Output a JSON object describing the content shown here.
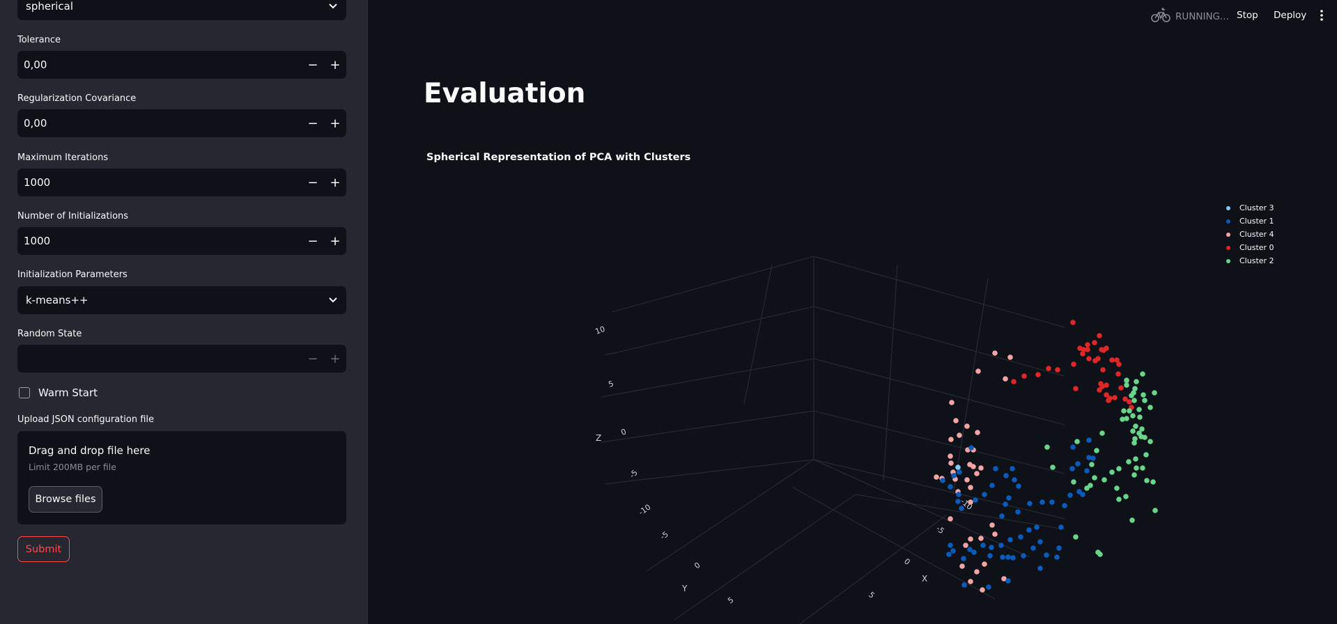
{
  "sidebar": {
    "covariance_value": "spherical",
    "tolerance": {
      "label": "Tolerance",
      "value": "0,00"
    },
    "reg_covar": {
      "label": "Regularization Covariance",
      "value": "0,00"
    },
    "max_iter": {
      "label": "Maximum Iterations",
      "value": "1000"
    },
    "n_init": {
      "label": "Number of Initializations",
      "value": "1000"
    },
    "init_params": {
      "label": "Initialization Parameters",
      "value": "k-means++"
    },
    "random_state": {
      "label": "Random State",
      "value": ""
    },
    "warm_start": {
      "label": "Warm Start",
      "checked": false
    },
    "upload": {
      "label": "Upload JSON configuration file",
      "title": "Drag and drop file here",
      "limit": "Limit 200MB per file",
      "browse": "Browse files"
    },
    "submit": "Submit",
    "stepper_minus": "−",
    "stepper_plus": "+"
  },
  "header": {
    "status": "RUNNING...",
    "stop": "Stop",
    "deploy": "Deploy",
    "status_icon": "bicycle-icon",
    "menu_icon": "kebab-menu-icon"
  },
  "main": {
    "title": "Evaluation",
    "chart_title": "Spherical Representation of PCA with Clusters"
  },
  "chart_data": {
    "type": "scatter",
    "title": "Spherical Representation of PCA with Clusters",
    "axes": {
      "x": "X",
      "y": "Y",
      "z": "Z"
    },
    "z_ticks": [
      "10",
      "5",
      "0",
      "-5",
      "-10"
    ],
    "y_ticks": [
      "-5",
      "0",
      "5"
    ],
    "x_ticks": [
      "-10",
      "-5",
      "0",
      "5"
    ],
    "legend_placement": "top-right",
    "series": [
      {
        "name": "Cluster 3",
        "color": "#84c8f5"
      },
      {
        "name": "Cluster 1",
        "color": "#0a5bbb"
      },
      {
        "name": "Cluster 4",
        "color": "#f3a5a5"
      },
      {
        "name": "Cluster 0",
        "color": "#e02727"
      },
      {
        "name": "Cluster 2",
        "color": "#68d58b"
      }
    ]
  }
}
